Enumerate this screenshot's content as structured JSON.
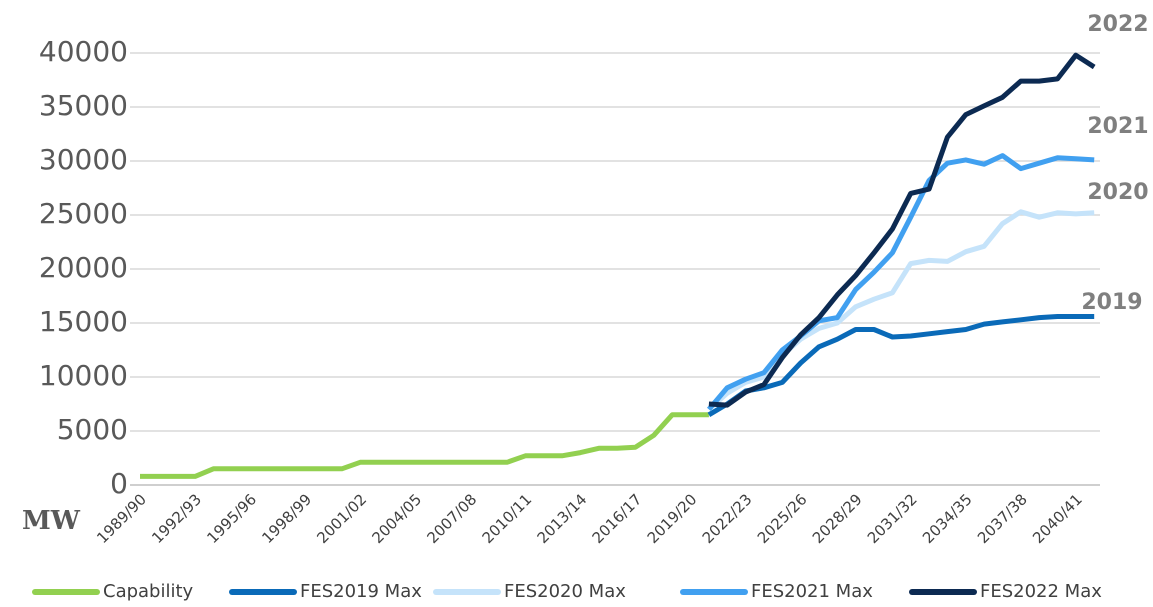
{
  "chart_data": {
    "type": "line",
    "y_label": "MW",
    "categories": [
      "1989/90",
      null,
      null,
      "1992/93",
      null,
      null,
      "1995/96",
      null,
      null,
      "1998/99",
      null,
      null,
      "2001/02",
      null,
      null,
      "2004/05",
      null,
      null,
      "2007/08",
      null,
      null,
      "2010/11",
      null,
      null,
      "2013/14",
      null,
      null,
      "2016/17",
      null,
      null,
      "2019/20",
      null,
      null,
      "2022/23",
      null,
      null,
      "2025/26",
      null,
      null,
      "2028/29",
      null,
      null,
      "2031/32",
      null,
      null,
      "2034/35",
      null,
      null,
      "2037/38",
      null,
      null,
      "2040/41",
      null
    ],
    "series": [
      {
        "name": "Capability",
        "color": "#92d050",
        "values": [
          800,
          800,
          800,
          800,
          1500,
          1500,
          1500,
          1500,
          1500,
          1500,
          1500,
          1500,
          2100,
          2100,
          2100,
          2100,
          2100,
          2100,
          2100,
          2100,
          2100,
          2700,
          2700,
          2700,
          3000,
          3400,
          3400,
          3500,
          4600,
          6500,
          6500,
          6500,
          null,
          null,
          null,
          null,
          null,
          null,
          null,
          null,
          null,
          null,
          null,
          null,
          null,
          null,
          null,
          null,
          null,
          null,
          null,
          null,
          null
        ]
      },
      {
        "name": "FES2019 Max",
        "color": "#0a6ab8",
        "values": [
          null,
          null,
          null,
          null,
          null,
          null,
          null,
          null,
          null,
          null,
          null,
          null,
          null,
          null,
          null,
          null,
          null,
          null,
          null,
          null,
          null,
          null,
          null,
          null,
          null,
          null,
          null,
          null,
          null,
          null,
          null,
          6500,
          7500,
          8700,
          9000,
          9500,
          11300,
          12800,
          13500,
          14400,
          14400,
          13700,
          13800,
          14000,
          14200,
          14400,
          14900,
          15100,
          15300,
          15500,
          15600,
          15600,
          15600
        ]
      },
      {
        "name": "FES2020 Max",
        "color": "#c5e3fa",
        "values": [
          null,
          null,
          null,
          null,
          null,
          null,
          null,
          null,
          null,
          null,
          null,
          null,
          null,
          null,
          null,
          null,
          null,
          null,
          null,
          null,
          null,
          null,
          null,
          null,
          null,
          null,
          null,
          null,
          null,
          null,
          null,
          7000,
          8500,
          9500,
          10000,
          12000,
          13500,
          14500,
          15000,
          16500,
          17200,
          17800,
          20500,
          20800,
          20700,
          21600,
          22100,
          24200,
          25300,
          24800,
          25200,
          25100,
          25200
        ]
      },
      {
        "name": "FES2021 Max",
        "color": "#41a0f0",
        "values": [
          null,
          null,
          null,
          null,
          null,
          null,
          null,
          null,
          null,
          null,
          null,
          null,
          null,
          null,
          null,
          null,
          null,
          null,
          null,
          null,
          null,
          null,
          null,
          null,
          null,
          null,
          null,
          null,
          null,
          null,
          null,
          7000,
          9000,
          9800,
          10400,
          12500,
          13800,
          15200,
          15500,
          18100,
          19700,
          21500,
          24800,
          28200,
          29800,
          30100,
          29700,
          30500,
          29300,
          29800,
          30300,
          30200,
          30100
        ]
      },
      {
        "name": "FES2022 Max",
        "color": "#0c2a52",
        "values": [
          null,
          null,
          null,
          null,
          null,
          null,
          null,
          null,
          null,
          null,
          null,
          null,
          null,
          null,
          null,
          null,
          null,
          null,
          null,
          null,
          null,
          null,
          null,
          null,
          null,
          null,
          null,
          null,
          null,
          null,
          null,
          7500,
          7400,
          8600,
          9300,
          11800,
          13900,
          15500,
          17600,
          19400,
          21500,
          23700,
          27000,
          27400,
          32200,
          34300,
          35100,
          35900,
          37400,
          37400,
          37600,
          39800,
          38700
        ]
      }
    ],
    "annotations": [
      "2022",
      "2021",
      "2020",
      "2019"
    ],
    "ylim": [
      0,
      40000
    ],
    "yticks": [
      0,
      5000,
      10000,
      15000,
      20000,
      25000,
      30000,
      35000,
      40000
    ],
    "grid": true
  }
}
